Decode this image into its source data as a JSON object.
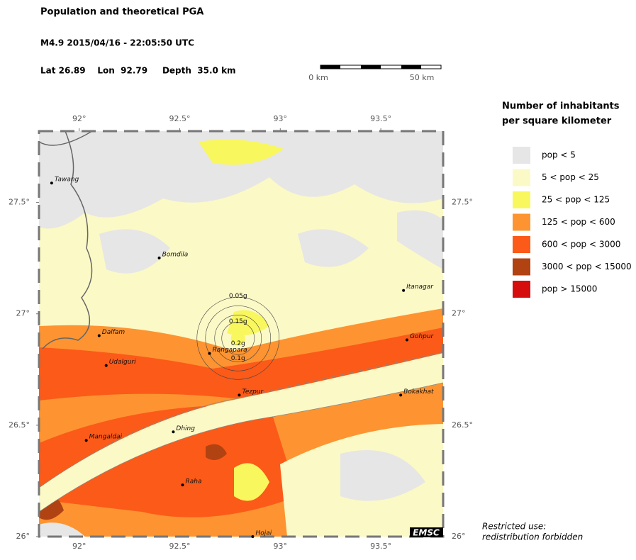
{
  "header": {
    "title": "Population and theoretical PGA",
    "event": "M4.9  2015/04/16 - 22:05:50 UTC",
    "location": "Lat 26.89    Lon  92.79     Depth  35.0 km"
  },
  "scale_bar": {
    "labels": [
      "0 km",
      "50 km"
    ]
  },
  "map": {
    "xlim": [
      91.8,
      93.81
    ],
    "ylim": [
      26.0,
      27.82
    ],
    "xticks": [
      {
        "value": 92,
        "label": "92°"
      },
      {
        "value": 92.5,
        "label": "92.5°"
      },
      {
        "value": 93,
        "label": "93°"
      },
      {
        "value": 93.5,
        "label": "93.5°"
      }
    ],
    "yticks": [
      {
        "value": 26,
        "label": "26°"
      },
      {
        "value": 26.5,
        "label": "26.5°"
      },
      {
        "value": 27,
        "label": "27°"
      },
      {
        "value": 27.5,
        "label": "27.5°"
      }
    ],
    "epicenter": {
      "lon": 92.79,
      "lat": 26.89
    },
    "pga_labels": [
      "0.05g",
      "0.15g",
      "0.2g",
      "0.1g"
    ],
    "cities": [
      {
        "name": "Tawang",
        "lon": 91.863,
        "lat": 27.587
      },
      {
        "name": "Bomdila",
        "lon": 92.398,
        "lat": 27.251
      },
      {
        "name": "Itanagar",
        "lon": 93.613,
        "lat": 27.105
      },
      {
        "name": "Dalfam",
        "lon": 92.099,
        "lat": 26.902
      },
      {
        "name": "Gohpur",
        "lon": 93.63,
        "lat": 26.883
      },
      {
        "name": "Udalguri",
        "lon": 92.134,
        "lat": 26.768
      },
      {
        "name": "Rangapara",
        "lon": 92.648,
        "lat": 26.822
      },
      {
        "name": "Tezpur",
        "lon": 92.796,
        "lat": 26.635
      },
      {
        "name": "Bokakhat",
        "lon": 93.599,
        "lat": 26.635
      },
      {
        "name": "Mangaldai",
        "lon": 92.035,
        "lat": 26.432
      },
      {
        "name": "Dhing",
        "lon": 92.468,
        "lat": 26.47
      },
      {
        "name": "Raha",
        "lon": 92.514,
        "lat": 26.232
      },
      {
        "name": "Hojai",
        "lon": 92.863,
        "lat": 26.0
      }
    ],
    "logo": "EMSC"
  },
  "legend": {
    "title": [
      "Number of inhabitants",
      "per square kilometer"
    ],
    "items": [
      {
        "label": "pop < 5",
        "color": "#e6e6e6"
      },
      {
        "label": "5 < pop < 25",
        "color": "#fbf9c6"
      },
      {
        "label": "25 < pop < 125",
        "color": "#f9f75e"
      },
      {
        "label": "125 < pop < 600",
        "color": "#fd9431"
      },
      {
        "label": "600 < pop < 3000",
        "color": "#fc5a19"
      },
      {
        "label": "3000 < pop < 15000",
        "color": "#b14212"
      },
      {
        "label": "pop > 15000",
        "color": "#d50d0d"
      }
    ]
  },
  "footnote": [
    "Restricted use:",
    "redistribution forbidden"
  ]
}
